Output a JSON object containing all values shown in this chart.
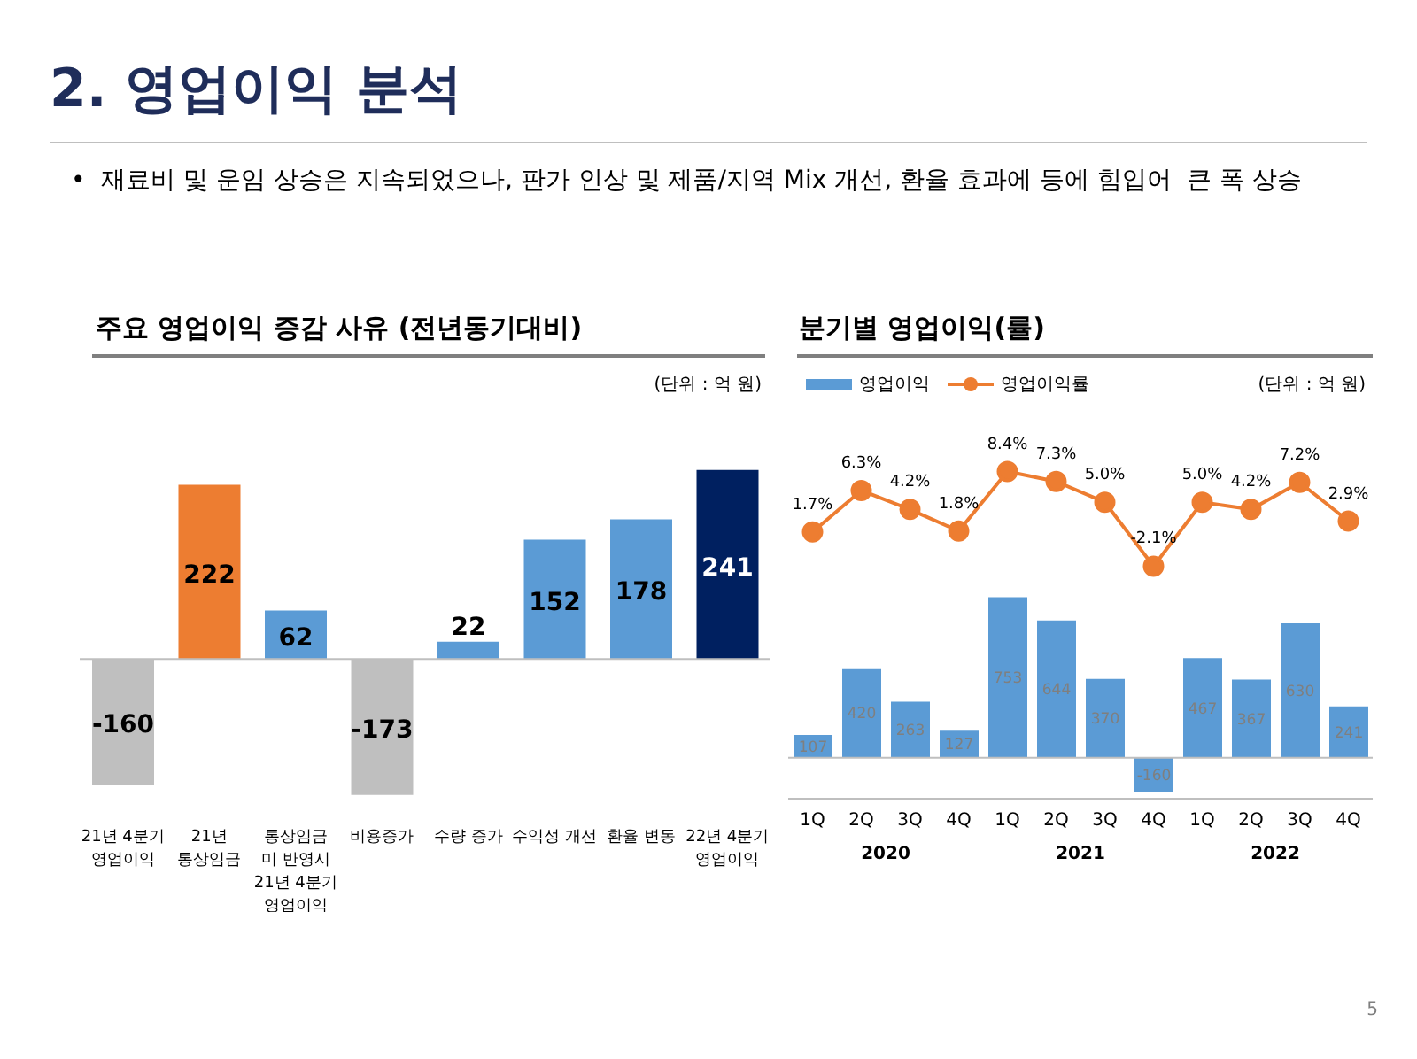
{
  "chart_data": [
    {
      "type": "other",
      "title": "2. 영업이익 분석",
      "annotations": [
        "•  재료비 및 운임 상승은 지속되었으나, 판가 인상 및 제품/지역 Mix 개선, 환율 효과에 등에 힘입어  큰 폭 상승",
        "5"
      ]
    },
    {
      "type": "bar",
      "title": "주요 영업이익 증감 사유 (전년동기대비)",
      "annotations": [
        "(단위 : 억 원)"
      ],
      "categories": [
        "21년 4분기\n영업이익",
        "21년\n통상임금",
        "통상임금\n미 반영시\n21년 4분기\n영업이익",
        "비용증가",
        "수량 증가",
        "수익성 개선",
        "환율 변동",
        "22년 4분기\n영업이익"
      ],
      "values": [
        -160,
        222,
        62,
        -173,
        22,
        152,
        178,
        241
      ],
      "colors": [
        "#bfbfbf",
        "#ed7d31",
        "#5b9bd5",
        "#bfbfbf",
        "#5b9bd5",
        "#5b9bd5",
        "#5b9bd5",
        "#002060"
      ],
      "data_labels": true
    },
    {
      "type": "bar",
      "annotations": [
        "(단위 : 억 원)",
        "2020",
        "2021",
        "2022"
      ],
      "categories": [
        "1Q",
        "2Q",
        "3Q",
        "4Q",
        "1Q",
        "2Q",
        "3Q",
        "4Q",
        "1Q",
        "2Q",
        "3Q",
        "4Q"
      ],
      "series": [
        {
          "name": "영업이익",
          "color": "#5b9bd5",
          "values": [
            107,
            420,
            263,
            127,
            753,
            644,
            370,
            -160,
            467,
            367,
            630,
            241
          ]
        }
      ],
      "legend": "top left",
      "data_labels": true
    },
    {
      "type": "line",
      "title": "분기별 영업이익(률)",
      "categories": [
        null,
        null,
        null,
        null,
        null,
        null,
        null,
        null,
        null,
        null,
        null,
        null
      ],
      "series": [
        {
          "name": "영업이익률",
          "color": "#ed7d31",
          "values": [
            1.7,
            6.3,
            4.2,
            1.8,
            8.4,
            7.3,
            5.0,
            -2.1,
            5.0,
            4.2,
            7.2,
            2.9
          ],
          "value_labels": [
            "1.7%",
            "6.3%",
            "4.2%",
            "1.8%",
            "8.4%",
            "7.3%",
            "5.0%",
            "-2.1%",
            "5.0%",
            "4.2%",
            "7.2%",
            "2.9%"
          ]
        }
      ],
      "legend": "top left",
      "marker": "circle"
    }
  ]
}
